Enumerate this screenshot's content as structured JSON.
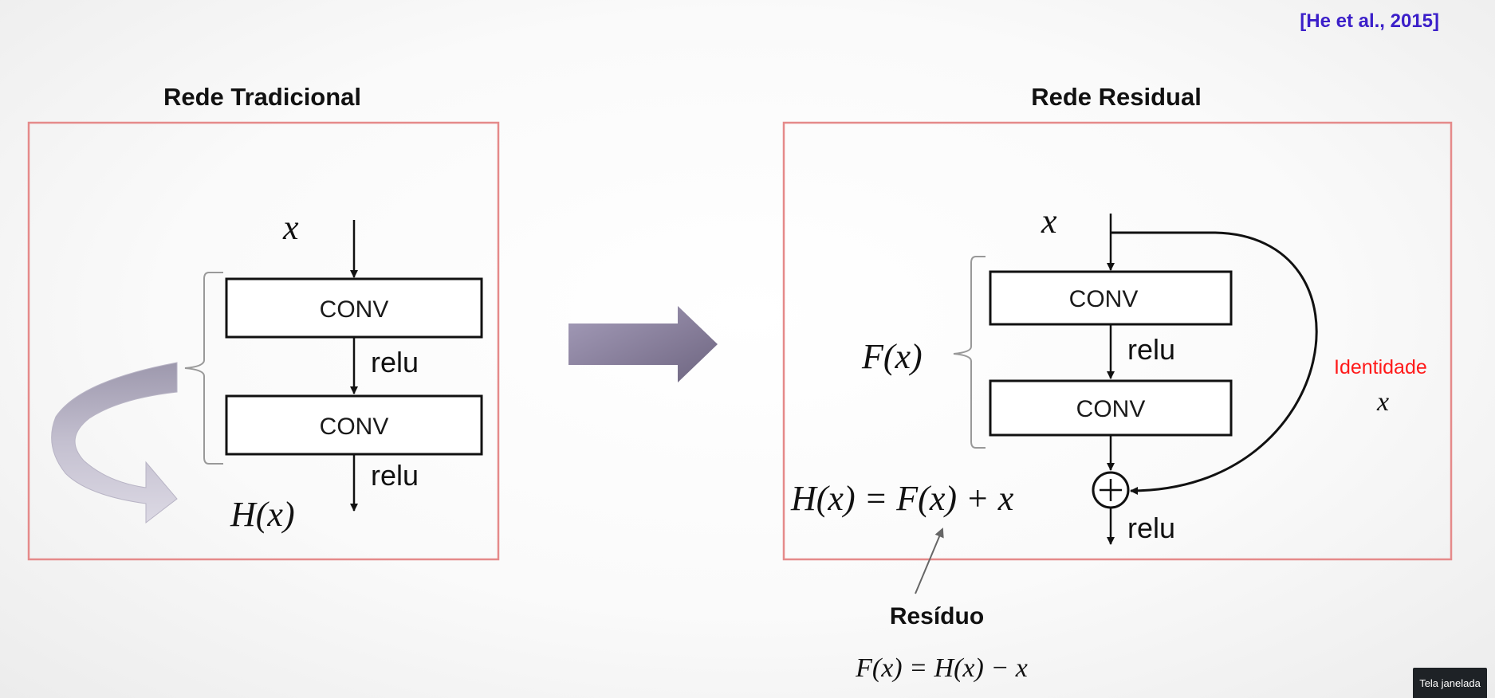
{
  "citation": "[He et al., 2015]",
  "traditional": {
    "title": "Rede Tradicional",
    "input": "x",
    "conv1": "CONV",
    "relu1": "relu",
    "conv2": "CONV",
    "relu2": "relu",
    "output": "H(x)"
  },
  "residual": {
    "title": "Rede Residual",
    "input": "x",
    "conv1": "CONV",
    "relu1": "relu",
    "conv2": "CONV",
    "relu2": "relu",
    "fx_label": "F(x)",
    "identity_label": "Identidade",
    "identity_x": "x",
    "equation": "H(x) = F(x) + x",
    "residue_label": "Resíduo",
    "residue_equation": "F(x) = H(x) − x"
  },
  "window_button": "Tela janelada",
  "colors": {
    "frame": "#e58a8a",
    "citation": "#3b1fc9",
    "identity": "#ff1a1a",
    "big_arrow": "#8a819b"
  }
}
